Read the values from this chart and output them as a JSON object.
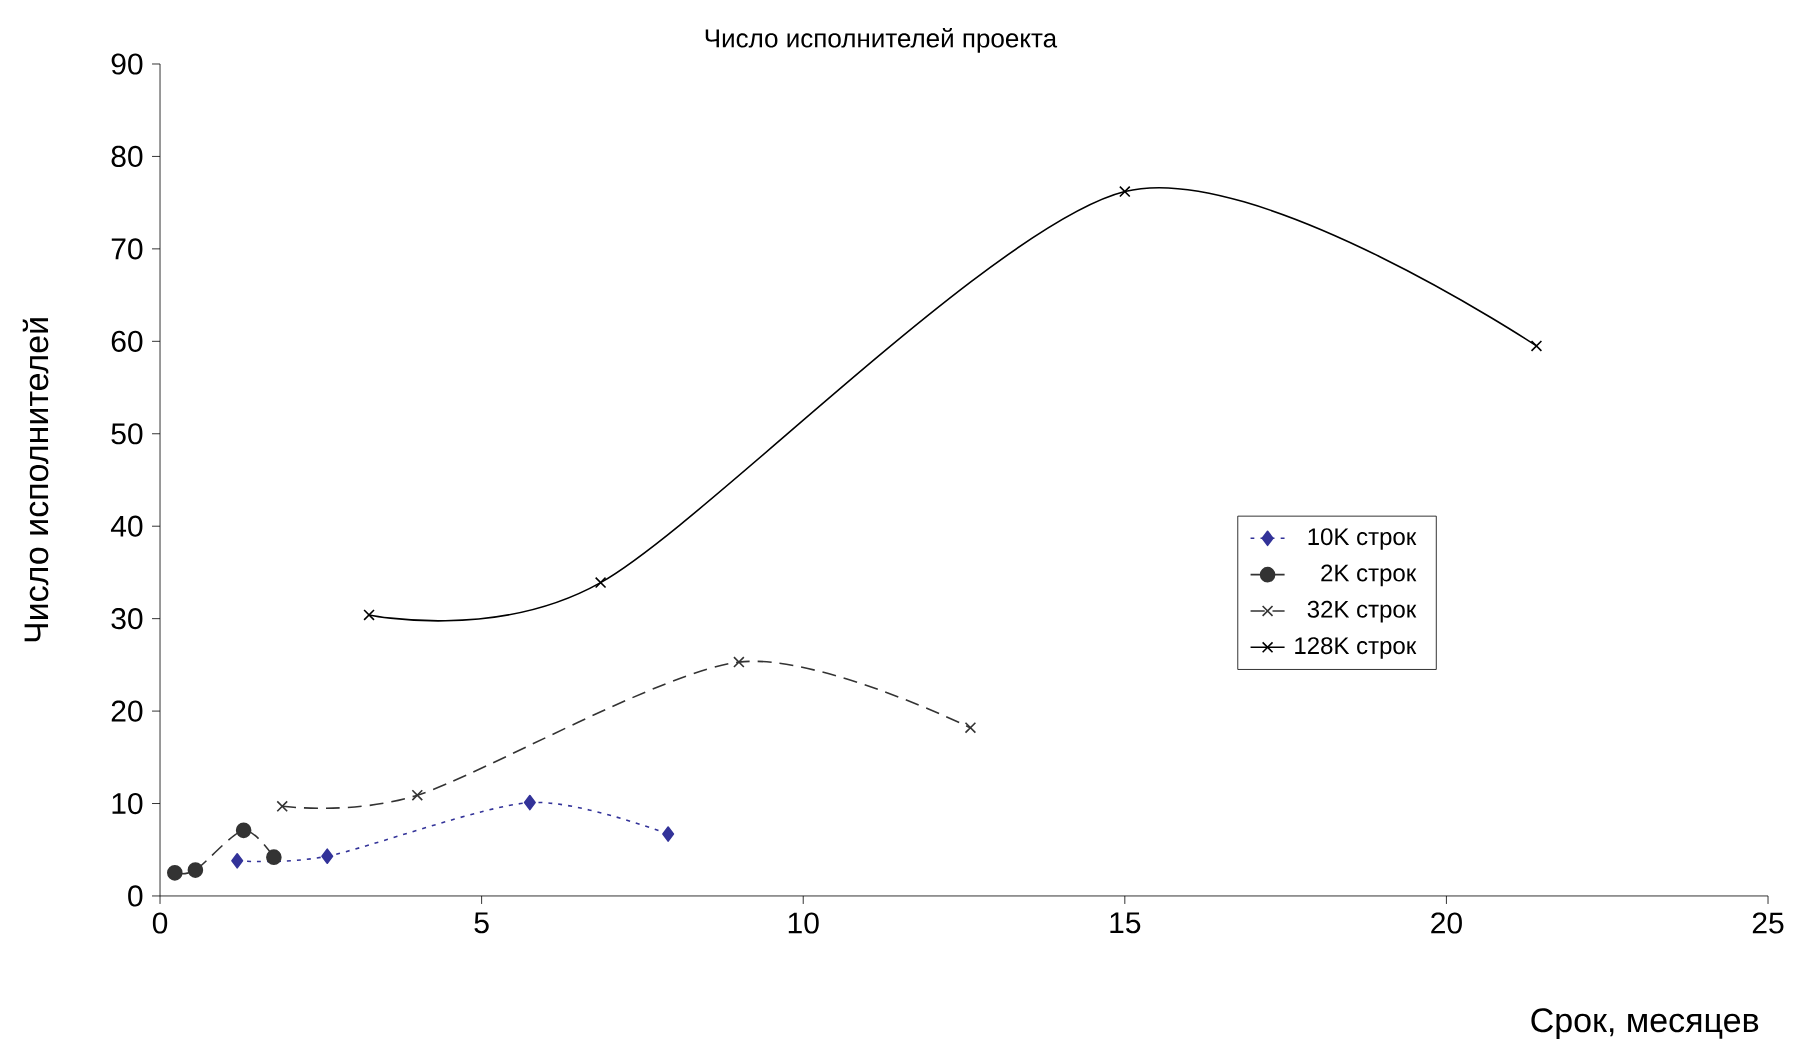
{
  "chart_data": {
    "type": "line",
    "title": "Число исполнителей проекта",
    "xlabel": "Срок, месяцев",
    "ylabel": "Число исполнителей",
    "xlim": [
      0,
      25
    ],
    "xticks": [
      0,
      5,
      10,
      15,
      20,
      25
    ],
    "ylim": [
      0,
      90
    ],
    "yticks": [
      0,
      10,
      20,
      30,
      40,
      50,
      60,
      70,
      80,
      90
    ],
    "grid": false,
    "legend": "right",
    "series": [
      {
        "name": "10K строк",
        "color": "#333399",
        "marker": "diamond",
        "line_style": "dotted",
        "x": [
          1.2,
          2.6,
          5.75,
          7.9
        ],
        "values": [
          3.8,
          4.3,
          10.1,
          6.7
        ]
      },
      {
        "name": "2K строк",
        "color": "#333333",
        "marker": "circle",
        "line_style": "dashed",
        "x": [
          0.23,
          0.55,
          1.3,
          1.77
        ],
        "values": [
          2.5,
          2.8,
          7.1,
          4.2
        ]
      },
      {
        "name": "32K строк",
        "color": "#333333",
        "marker": "cross",
        "line_style": "dashed",
        "x": [
          1.9,
          4.0,
          9.0,
          12.6
        ],
        "values": [
          9.7,
          10.9,
          25.3,
          18.2
        ]
      },
      {
        "name": "128K строк",
        "color": "#000000",
        "marker": "cross",
        "line_style": "solid",
        "x": [
          3.25,
          6.85,
          15.0,
          21.4
        ],
        "values": [
          30.4,
          33.9,
          76.2,
          59.5
        ]
      }
    ]
  }
}
